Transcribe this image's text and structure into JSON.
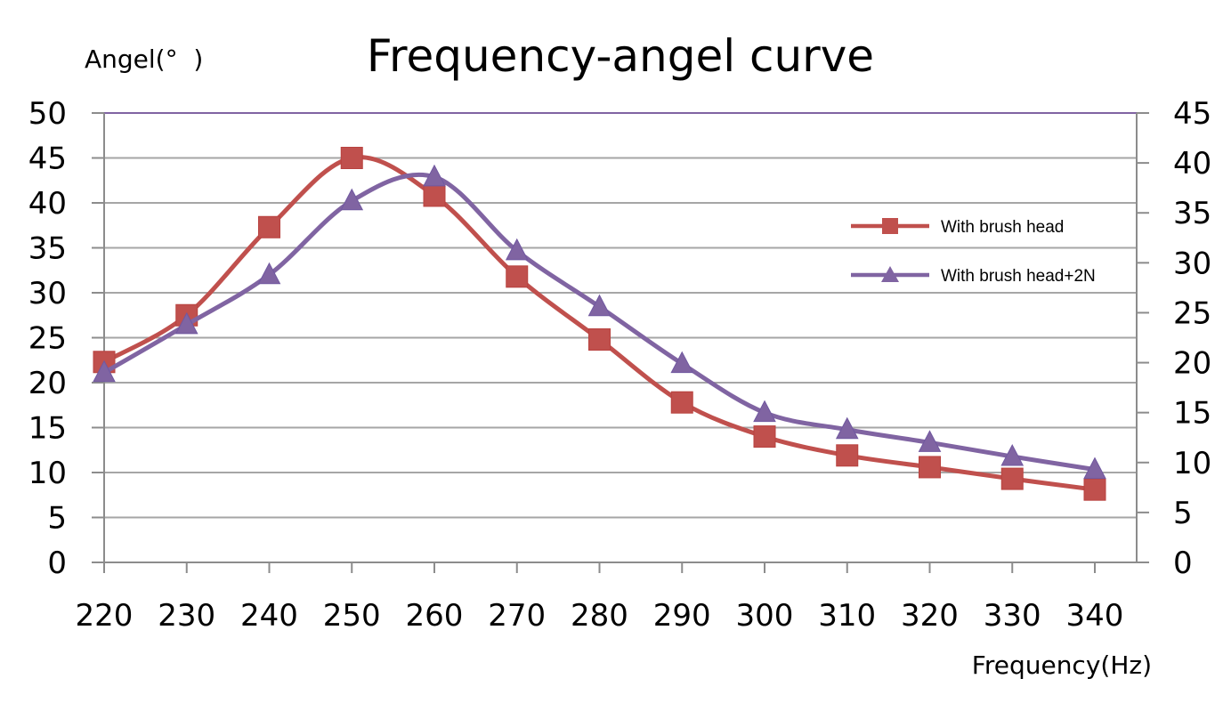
{
  "chart_data": {
    "type": "line",
    "title": "Frequency-angel curve",
    "xlabel": "Frequency(Hz)",
    "ylabel": "Angel(°  )",
    "x": [
      220,
      230,
      240,
      250,
      260,
      270,
      280,
      290,
      300,
      310,
      320,
      330,
      340
    ],
    "ylim_left": [
      0,
      50
    ],
    "ylim_right": [
      0,
      45
    ],
    "yticks_left": [
      0,
      5,
      10,
      15,
      20,
      25,
      30,
      35,
      40,
      45,
      50
    ],
    "yticks_right": [
      0,
      5,
      10,
      15,
      20,
      25,
      30,
      35,
      40,
      45
    ],
    "grid": true,
    "legend_position": "right",
    "series": [
      {
        "name": "With brush head",
        "axis": "left",
        "marker": "square",
        "color": "#c0504d",
        "values": [
          22.3,
          27.5,
          37.3,
          45,
          40.8,
          31.8,
          24.8,
          17.8,
          14,
          11.9,
          10.6,
          9.3,
          8.1
        ]
      },
      {
        "name": "With brush head+2N",
        "axis": "right",
        "marker": "triangle",
        "color": "#8064a2",
        "values": [
          19,
          23.8,
          28.8,
          36.2,
          38.6,
          31.2,
          25.6,
          19.9,
          15,
          13.3,
          12,
          10.6,
          9.3
        ]
      }
    ]
  }
}
